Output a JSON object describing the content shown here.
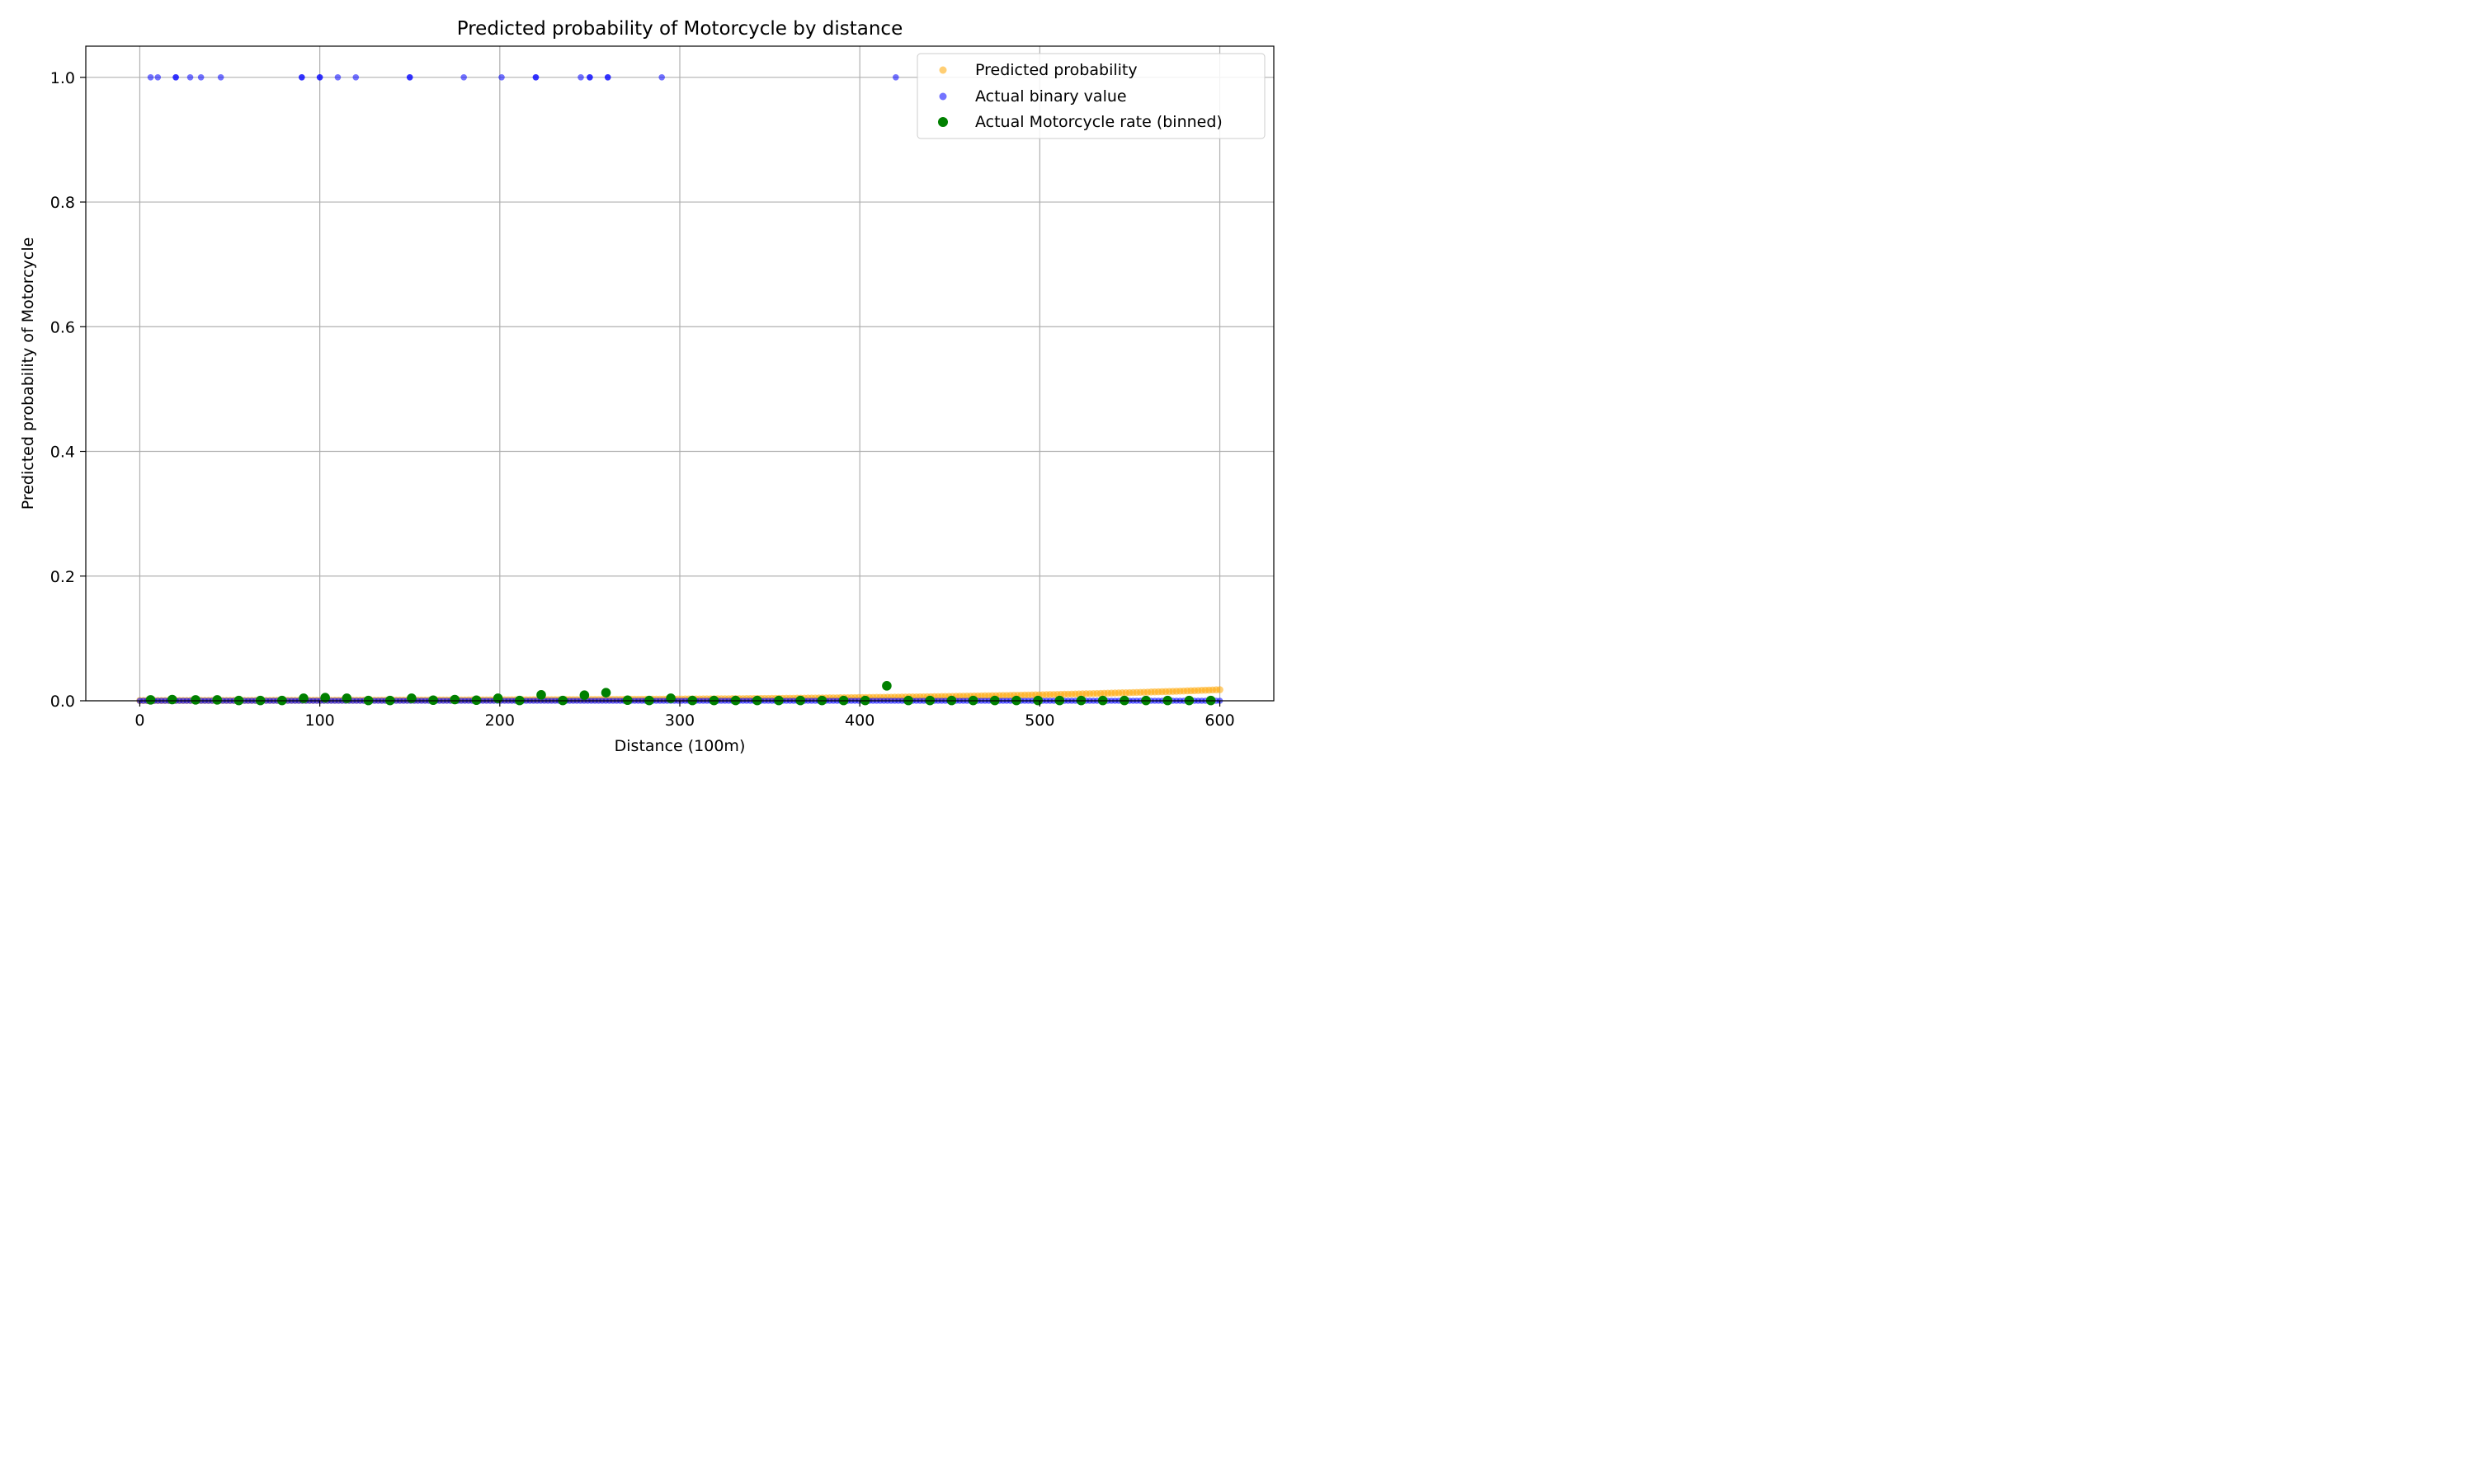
{
  "chart_data": {
    "type": "scatter",
    "title": "Predicted probability of Motorcycle by distance",
    "xlabel": "Distance (100m)",
    "ylabel": "Predicted probability of Motorcycle",
    "xlim": [
      -30,
      630
    ],
    "ylim": [
      0,
      1.05
    ],
    "xticks": [
      0,
      100,
      200,
      300,
      400,
      500,
      600
    ],
    "xtick_labels": [
      "0",
      "100",
      "200",
      "300",
      "400",
      "500",
      "600"
    ],
    "yticks": [
      0.0,
      0.2,
      0.4,
      0.6,
      0.8,
      1.0
    ],
    "ytick_labels": [
      "0.0",
      "0.2",
      "0.4",
      "0.6",
      "0.8",
      "1.0"
    ],
    "grid": true,
    "legend": {
      "position": "top-right",
      "entries": [
        "Predicted probability",
        "Actual binary value",
        "Actual Motorcycle rate (binned)"
      ]
    },
    "series": [
      {
        "name": "Predicted probability",
        "color": "#ffa500",
        "alpha": 0.55,
        "model": "logistic",
        "x_range": [
          0,
          600
        ],
        "intercept": -7.75,
        "slope": 0.00623,
        "count": 300
      },
      {
        "name": "Actual binary value",
        "color": "#0000ff",
        "alpha": 0.55,
        "ones_x": [
          6,
          10,
          20,
          20,
          28,
          34,
          45,
          90,
          90,
          100,
          100,
          110,
          120,
          150,
          150,
          180,
          201,
          220,
          220,
          245,
          250,
          250,
          260,
          260,
          290,
          420
        ],
        "zeros_x_range": [
          0,
          600
        ],
        "zeros_count": 300
      },
      {
        "name": "Actual Motorcycle rate (binned)",
        "color": "#008000",
        "x": [
          6,
          18,
          31,
          43,
          55,
          67,
          79,
          91,
          103,
          115,
          127,
          139,
          151,
          163,
          175,
          187,
          199,
          211,
          223,
          235,
          247,
          259,
          271,
          283,
          295,
          307,
          319,
          331,
          343,
          355,
          367,
          379,
          391,
          403,
          415,
          427,
          439,
          451,
          463,
          475,
          487,
          499,
          511,
          523,
          535,
          547,
          559,
          571,
          583,
          595
        ],
        "y": [
          0.0015,
          0.002,
          0.0015,
          0.0015,
          0.0005,
          0.0005,
          0.0005,
          0.004,
          0.005,
          0.004,
          0.0005,
          0.0005,
          0.004,
          0.001,
          0.002,
          0.001,
          0.004,
          0.0005,
          0.0095,
          0.0005,
          0.009,
          0.013,
          0.001,
          0.0005,
          0.004,
          0.0005,
          0.0005,
          0.0005,
          0.0005,
          0.0005,
          0.0005,
          0.0005,
          0.0005,
          0.0005,
          0.024,
          0.0005,
          0.0005,
          0.0005,
          0.0005,
          0.0005,
          0.0005,
          0.0005,
          0.0005,
          0.0005,
          0.0005,
          0.0005,
          0.0005,
          0.0005,
          0.0005,
          0.0005
        ]
      }
    ]
  }
}
